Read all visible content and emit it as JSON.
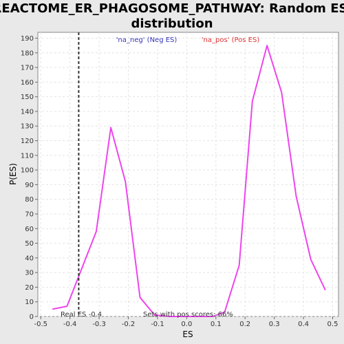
{
  "chart_data": {
    "type": "line",
    "title_line1": "REACTOME_ER_PHAGOSOME_PATHWAY: Random ES",
    "title_line2": "distribution",
    "xlabel": "ES",
    "ylabel": "P(ES)",
    "xlim": [
      -0.51,
      0.52
    ],
    "ylim": [
      0,
      194
    ],
    "x_ticks": [
      -0.5,
      -0.4,
      -0.3,
      -0.2,
      -0.1,
      0.0,
      0.1,
      0.2,
      0.3,
      0.4,
      0.5
    ],
    "x_tick_labels": [
      "-0.5",
      "-0.4",
      "-0.3",
      "-0.2",
      "-0.1",
      "0.0",
      "0.1",
      "0.2",
      "0.3",
      "0.4",
      "0.5"
    ],
    "y_ticks": [
      0,
      10,
      20,
      30,
      40,
      50,
      60,
      70,
      80,
      90,
      100,
      110,
      120,
      130,
      140,
      150,
      160,
      170,
      180,
      190
    ],
    "grid": true,
    "series": [
      {
        "color": "#ee44ee",
        "x": [
          -0.46,
          -0.41,
          -0.31,
          -0.26,
          -0.21,
          -0.16,
          -0.11,
          -0.06,
          -0.01,
          0.04,
          0.09,
          0.13,
          0.18,
          0.225,
          0.275,
          0.325,
          0.375,
          0.425,
          0.475
        ],
        "y": [
          5,
          7,
          58,
          129,
          92,
          13,
          1,
          0,
          0,
          0,
          0,
          3,
          35,
          147,
          185,
          153,
          82,
          39,
          18
        ]
      }
    ],
    "real_es": {
      "x": -0.37,
      "label": "Real ES -0.4"
    },
    "annotations": {
      "neg": {
        "text": "'na_neg' (Neg ES)",
        "color": "#3333bb"
      },
      "pos": {
        "text": "'na_pos' (Pos ES)",
        "color": "#dd3333"
      },
      "sets": {
        "text": "Sets with pos scores: 66%",
        "color": "#333333"
      }
    }
  }
}
